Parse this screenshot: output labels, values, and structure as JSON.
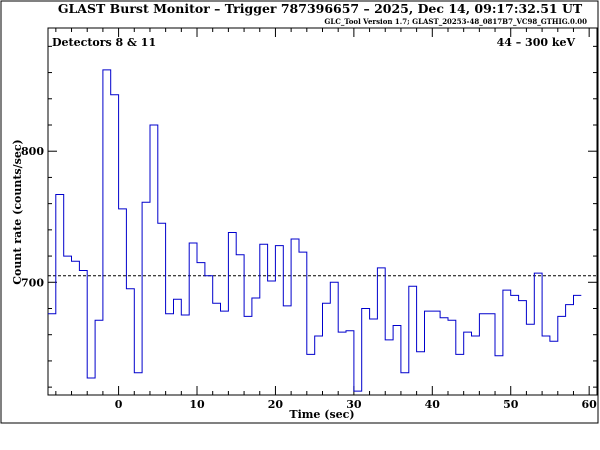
{
  "chart_data": {
    "type": "line",
    "title": "GLAST Burst Monitor  –  Trigger 787396657  –  2025, Dec 14, 09:17:32.51 UT",
    "subtitle": "GLC_Tool Version 1.7; GLAST_20253-48_0817B7_VC98_GTHIG.0.00",
    "xlabel": "Time (sec)",
    "ylabel": "Count rate (counts/sec)",
    "annotation_left": "Detectors 8 & 11",
    "annotation_right": "44 – 300 keV",
    "xlim": [
      -9,
      61
    ],
    "ylim": [
      614,
      894
    ],
    "x_ticks": [
      0,
      10,
      20,
      30,
      40,
      50,
      60
    ],
    "y_ticks": [
      700,
      800
    ],
    "background_level": 705,
    "bin_width": 1.0,
    "bin_start": -9.0,
    "counts": [
      676,
      767,
      720,
      716,
      709,
      627,
      671,
      862,
      843,
      756,
      695,
      631,
      761,
      820,
      745,
      676,
      687,
      675,
      730,
      715,
      705,
      684,
      678,
      738,
      721,
      674,
      688,
      729,
      701,
      728,
      682,
      733,
      723,
      645,
      659,
      684,
      700,
      662,
      663,
      617,
      680,
      672,
      711,
      656,
      667,
      631,
      697,
      647,
      678,
      678,
      673,
      671,
      645,
      662,
      659,
      676,
      676,
      644,
      694,
      690,
      686,
      668,
      707,
      659,
      655,
      674,
      683,
      690
    ],
    "line_color": "#0000cc",
    "background_line_style": "dashed",
    "grid": false
  }
}
